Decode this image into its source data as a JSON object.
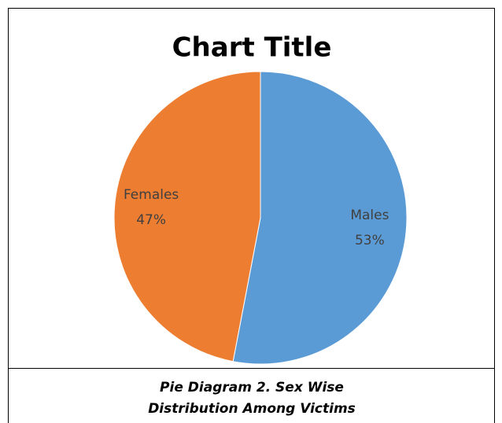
{
  "chart_data": {
    "type": "pie",
    "title": "Chart Title",
    "categories": [
      "Males",
      "Females"
    ],
    "values": [
      53,
      47
    ],
    "value_labels": [
      "53%",
      "47%"
    ],
    "colors": [
      "#5b9bd5",
      "#ed7d31"
    ]
  },
  "caption_lines": [
    "Pie Diagram 2. Sex Wise",
    "Distribution Among Victims"
  ]
}
